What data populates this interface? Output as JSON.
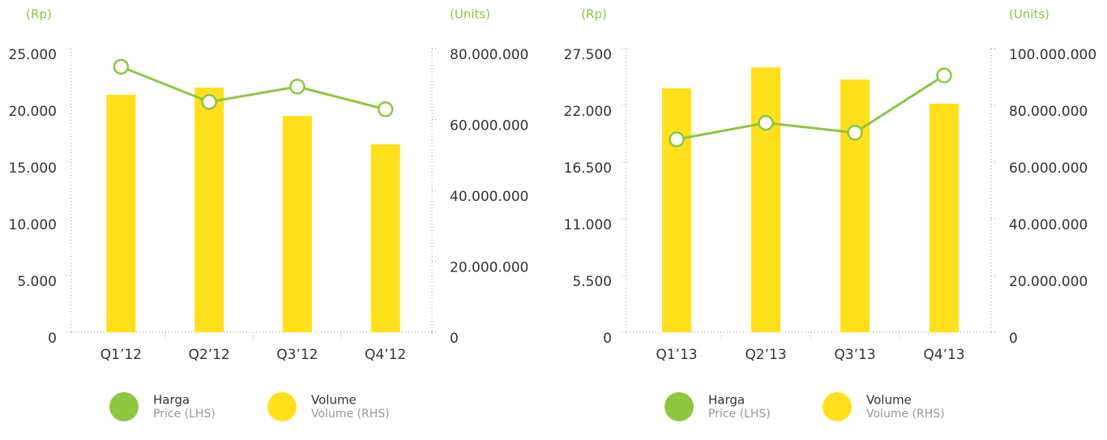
{
  "chart_data": [
    {
      "type": "bar-line",
      "ylabel": "(Rp)",
      "y2label": "(Units)",
      "categories": [
        "Q1’12",
        "Q2’12",
        "Q3’12",
        "Q4’12"
      ],
      "series": [
        {
          "name": "Harga",
          "subtitle": "Price (LHS)",
          "color": "#8dc63f",
          "type": "line",
          "values": [
            23400,
            20300,
            21650,
            19650
          ]
        },
        {
          "name": "Volume",
          "subtitle": "Volume (RHS)",
          "color": "#ffe01b",
          "type": "bar",
          "axis": "y2",
          "values": [
            67000000,
            69000000,
            61000000,
            53000000
          ]
        }
      ],
      "ylim": [
        0,
        25000
      ],
      "yticks": [
        0,
        {
          "value": 5000,
          "label": "5.000"
        },
        {
          "value": 10000,
          "label": "10.000"
        },
        {
          "value": 15000,
          "label": "15.000"
        },
        {
          "value": 20000,
          "label": "20.000"
        },
        {
          "value": 25000,
          "label": "25.000"
        }
      ],
      "y2lim": [
        0,
        80000000
      ],
      "y2ticks": [
        0,
        {
          "value": 20000000,
          "label": "20.000.000"
        },
        {
          "value": 40000000,
          "label": "40.000.000"
        },
        {
          "value": 60000000,
          "label": "60.000.000"
        },
        {
          "value": 80000000,
          "label": "80.000.000"
        }
      ]
    },
    {
      "type": "bar-line",
      "ylabel": "(Rp)",
      "y2label": "(Units)",
      "categories": [
        "Q1’13",
        "Q2’13",
        "Q3’13",
        "Q4’13"
      ],
      "series": [
        {
          "name": "Harga",
          "subtitle": "Price (LHS)",
          "color": "#8dc63f",
          "type": "line",
          "values": [
            18700,
            20300,
            19350,
            24900
          ]
        },
        {
          "name": "Volume",
          "subtitle": "Volume (RHS)",
          "color": "#ffe01b",
          "type": "bar",
          "axis": "y2",
          "values": [
            86000000,
            93400000,
            89100000,
            80600000
          ]
        }
      ],
      "ylim": [
        0,
        27500
      ],
      "yticks": [
        0,
        {
          "value": 5500,
          "label": "5.500"
        },
        {
          "value": 11000,
          "label": "11.000"
        },
        {
          "value": 16500,
          "label": "16.500"
        },
        {
          "value": 22000,
          "label": "22.000"
        },
        {
          "value": 27500,
          "label": "27.500"
        }
      ],
      "y2lim": [
        0,
        100000000
      ],
      "y2ticks": [
        0,
        {
          "value": 20000000,
          "label": "20.000.000"
        },
        {
          "value": 40000000,
          "label": "40.000.000"
        },
        {
          "value": 60000000,
          "label": "60.000.000"
        },
        {
          "value": 80000000,
          "label": "80.000.000"
        },
        {
          "value": 100000000,
          "label": "100.000.000"
        }
      ]
    }
  ]
}
